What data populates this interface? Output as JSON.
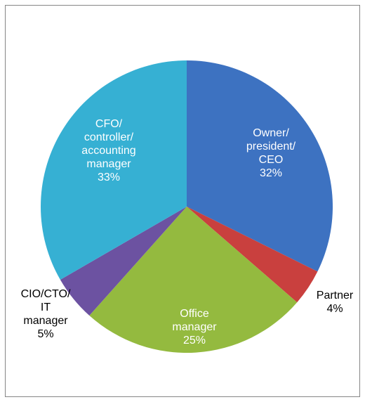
{
  "chart_data": {
    "type": "pie",
    "title": "",
    "slices": [
      {
        "label_lines": [
          "Owner/",
          "president/",
          "CEO"
        ],
        "value_text": "32%",
        "value": 32,
        "color": "#3d72c1",
        "label_color": "#ffffff"
      },
      {
        "label_lines": [
          "Partner"
        ],
        "value_text": "4%",
        "value": 4,
        "color": "#c9403e",
        "label_color": "#000000"
      },
      {
        "label_lines": [
          "Office",
          "manager"
        ],
        "value_text": "25%",
        "value": 25,
        "color": "#94ba3f",
        "label_color": "#ffffff"
      },
      {
        "label_lines": [
          "CIO/CTO/",
          "IT",
          "manager"
        ],
        "value_text": "5%",
        "value": 5,
        "color": "#6c52a1",
        "label_color": "#000000"
      },
      {
        "label_lines": [
          "CFO/",
          "controller/",
          "accounting",
          "manager"
        ],
        "value_text": "33%",
        "value": 33,
        "color": "#36b0d3",
        "label_color": "#ffffff"
      }
    ],
    "legend": "none"
  }
}
